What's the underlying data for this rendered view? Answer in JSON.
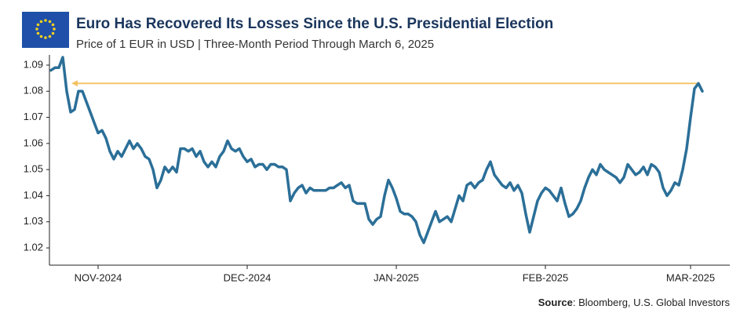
{
  "chart_data": {
    "type": "line",
    "title": "Euro Has Recovered Its Losses Since the U.S. Presidential Election",
    "subtitle": "Price of 1 EUR in USD | Three-Month Period Through March 6, 2025",
    "source": {
      "label": "Source",
      "text": ": Bloomberg, U.S. Global Investors"
    },
    "color": "#2b6f98",
    "reference_line": {
      "value": 1.083,
      "color": "#f2c262"
    },
    "ylim": [
      1.0134,
      1.0939
    ],
    "yticks": [
      1.02,
      1.03,
      1.04,
      1.05,
      1.06,
      1.07,
      1.08,
      1.09
    ],
    "categories": [
      null,
      null,
      null,
      null,
      null,
      null,
      null,
      null,
      null,
      null,
      null,
      null,
      "NOV-2024",
      null,
      null,
      null,
      null,
      null,
      null,
      null,
      null,
      null,
      null,
      null,
      null,
      null,
      null,
      null,
      null,
      null,
      null,
      null,
      null,
      null,
      null,
      null,
      null,
      null,
      null,
      null,
      null,
      null,
      null,
      null,
      null,
      null,
      null,
      null,
      null,
      null,
      "DEC-2024",
      null,
      null,
      null,
      null,
      null,
      null,
      null,
      null,
      null,
      null,
      null,
      null,
      null,
      null,
      null,
      null,
      null,
      null,
      null,
      null,
      null,
      null,
      null,
      null,
      null,
      null,
      null,
      null,
      null,
      null,
      null,
      null,
      null,
      null,
      null,
      null,
      null,
      "JAN-2025",
      null,
      null,
      null,
      null,
      null,
      null,
      null,
      null,
      null,
      null,
      null,
      null,
      null,
      null,
      null,
      null,
      null,
      null,
      null,
      null,
      null,
      null,
      null,
      null,
      null,
      null,
      null,
      null,
      null,
      null,
      null,
      null,
      null,
      null,
      null,
      null,
      null,
      "FEB-2025",
      null,
      null,
      null,
      null,
      null,
      null,
      null,
      null,
      null,
      null,
      null,
      null,
      null,
      null,
      null,
      null,
      null,
      null,
      null,
      null,
      null,
      null,
      null,
      null,
      null,
      null,
      null,
      null,
      null,
      null,
      null,
      null,
      null,
      null,
      null,
      null,
      "MAR-2025",
      null,
      null,
      null
    ],
    "values": [
      1.088,
      1.089,
      1.089,
      1.093,
      1.08,
      1.072,
      1.073,
      1.08,
      1.08,
      1.076,
      1.072,
      1.068,
      1.064,
      1.065,
      1.062,
      1.057,
      1.054,
      1.057,
      1.055,
      1.058,
      1.061,
      1.058,
      1.06,
      1.058,
      1.055,
      1.054,
      1.05,
      1.043,
      1.046,
      1.051,
      1.049,
      1.051,
      1.049,
      1.058,
      1.058,
      1.057,
      1.058,
      1.055,
      1.057,
      1.053,
      1.051,
      1.053,
      1.051,
      1.055,
      1.057,
      1.061,
      1.058,
      1.057,
      1.058,
      1.055,
      1.053,
      1.054,
      1.051,
      1.052,
      1.052,
      1.05,
      1.052,
      1.052,
      1.051,
      1.051,
      1.05,
      1.038,
      1.041,
      1.043,
      1.044,
      1.041,
      1.043,
      1.042,
      1.042,
      1.042,
      1.042,
      1.043,
      1.043,
      1.044,
      1.045,
      1.043,
      1.044,
      1.038,
      1.037,
      1.037,
      1.037,
      1.031,
      1.029,
      1.031,
      1.032,
      1.04,
      1.046,
      1.043,
      1.039,
      1.034,
      1.033,
      1.033,
      1.032,
      1.03,
      1.025,
      1.022,
      1.026,
      1.03,
      1.034,
      1.03,
      1.031,
      1.032,
      1.03,
      1.035,
      1.04,
      1.038,
      1.044,
      1.045,
      1.043,
      1.045,
      1.046,
      1.05,
      1.053,
      1.048,
      1.046,
      1.044,
      1.043,
      1.045,
      1.042,
      1.044,
      1.041,
      1.033,
      1.026,
      1.032,
      1.038,
      1.041,
      1.043,
      1.042,
      1.04,
      1.038,
      1.043,
      1.037,
      1.032,
      1.033,
      1.035,
      1.038,
      1.043,
      1.047,
      1.05,
      1.048,
      1.052,
      1.05,
      1.049,
      1.048,
      1.047,
      1.045,
      1.047,
      1.052,
      1.05,
      1.048,
      1.049,
      1.051,
      1.048,
      1.052,
      1.051,
      1.049,
      1.043,
      1.04,
      1.042,
      1.045,
      1.044,
      1.05,
      1.058,
      1.07,
      1.081,
      1.083,
      1.08
    ]
  }
}
